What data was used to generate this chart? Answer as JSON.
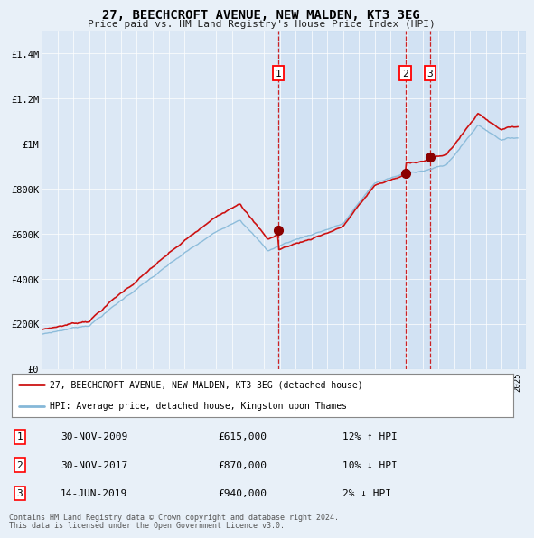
{
  "title": "27, BEECHCROFT AVENUE, NEW MALDEN, KT3 3EG",
  "subtitle": "Price paid vs. HM Land Registry's House Price Index (HPI)",
  "background_color": "#e8f0f8",
  "plot_bg_color": "#dce8f5",
  "transactions": [
    {
      "num": 1,
      "date_num": 2009.917,
      "price": 615000,
      "label": "30-NOV-2009",
      "pct": "12%",
      "dir": "↑"
    },
    {
      "num": 2,
      "date_num": 2017.917,
      "price": 870000,
      "label": "30-NOV-2017",
      "pct": "10%",
      "dir": "↓"
    },
    {
      "num": 3,
      "date_num": 2019.458,
      "price": 940000,
      "label": "14-JUN-2019",
      "pct": "2%",
      "dir": "↓"
    }
  ],
  "legend_line1": "27, BEECHCROFT AVENUE, NEW MALDEN, KT3 3EG (detached house)",
  "legend_line2": "HPI: Average price, detached house, Kingston upon Thames",
  "footer1": "Contains HM Land Registry data © Crown copyright and database right 2024.",
  "footer2": "This data is licensed under the Open Government Licence v3.0.",
  "table_rows": [
    [
      "1",
      "30-NOV-2009",
      "£615,000",
      "12% ↑ HPI"
    ],
    [
      "2",
      "30-NOV-2017",
      "£870,000",
      "10% ↓ HPI"
    ],
    [
      "3",
      "14-JUN-2019",
      "£940,000",
      "2% ↓ HPI"
    ]
  ],
  "xmin": 1995,
  "xmax": 2025.5,
  "ymin": 0,
  "ymax": 1500000,
  "hpi_color": "#85b8d8",
  "price_color": "#cc1111",
  "marker_color": "#8b0000",
  "vline_color": "#cc0000"
}
